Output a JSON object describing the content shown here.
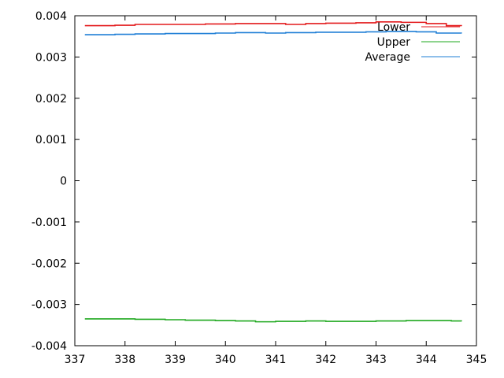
{
  "chart_data": {
    "type": "line",
    "title": "",
    "xlabel": "",
    "ylabel": "",
    "xlim": [
      337,
      345
    ],
    "ylim": [
      -0.004,
      0.004
    ],
    "x_ticks": [
      337,
      338,
      339,
      340,
      341,
      342,
      343,
      344,
      345
    ],
    "x_tick_labels": [
      "337",
      "338",
      "339",
      "340",
      "341",
      "342",
      "343",
      "344",
      "345"
    ],
    "y_ticks": [
      -0.004,
      -0.003,
      -0.002,
      -0.001,
      0,
      0.001,
      0.002,
      0.003,
      0.004
    ],
    "y_tick_labels": [
      "-0.004",
      "-0.003",
      "-0.002",
      "-0.001",
      "0",
      "0.001",
      "0.002",
      "0.003",
      "0.004"
    ],
    "grid": false,
    "legend_position": "top-right",
    "series": [
      {
        "name": "Lower",
        "color": "#e31a1c",
        "x": [
          337.2,
          337.8,
          338.2,
          339.0,
          339.6,
          340.2,
          340.8,
          341.2,
          341.6,
          342.0,
          342.6,
          343.0,
          343.5,
          344.0,
          344.4,
          344.7
        ],
        "y": [
          0.00376,
          0.00377,
          0.00379,
          0.00379,
          0.0038,
          0.00381,
          0.00381,
          0.00379,
          0.00381,
          0.00382,
          0.00383,
          0.00385,
          0.00384,
          0.00381,
          0.00376,
          0.00375
        ]
      },
      {
        "name": "Upper",
        "color": "#1fa81f",
        "x": [
          337.2,
          337.8,
          338.2,
          338.8,
          339.2,
          339.8,
          340.2,
          340.6,
          341.0,
          341.6,
          342.0,
          342.6,
          343.0,
          343.6,
          344.0,
          344.5,
          344.7
        ],
        "y": [
          -0.00335,
          -0.00335,
          -0.00336,
          -0.00337,
          -0.00338,
          -0.00339,
          -0.0034,
          -0.00342,
          -0.00341,
          -0.0034,
          -0.00341,
          -0.00341,
          -0.0034,
          -0.00339,
          -0.00339,
          -0.0034,
          -0.00341
        ]
      },
      {
        "name": "Average",
        "color": "#1f7fd6",
        "x": [
          337.2,
          337.8,
          338.2,
          338.8,
          339.2,
          339.8,
          340.2,
          340.8,
          341.2,
          341.8,
          342.2,
          342.8,
          343.2,
          343.8,
          344.2,
          344.7
        ],
        "y": [
          0.00354,
          0.00355,
          0.00356,
          0.00357,
          0.00357,
          0.00358,
          0.00359,
          0.00358,
          0.00359,
          0.0036,
          0.0036,
          0.00361,
          0.00362,
          0.00361,
          0.00358,
          0.00357
        ]
      }
    ]
  }
}
